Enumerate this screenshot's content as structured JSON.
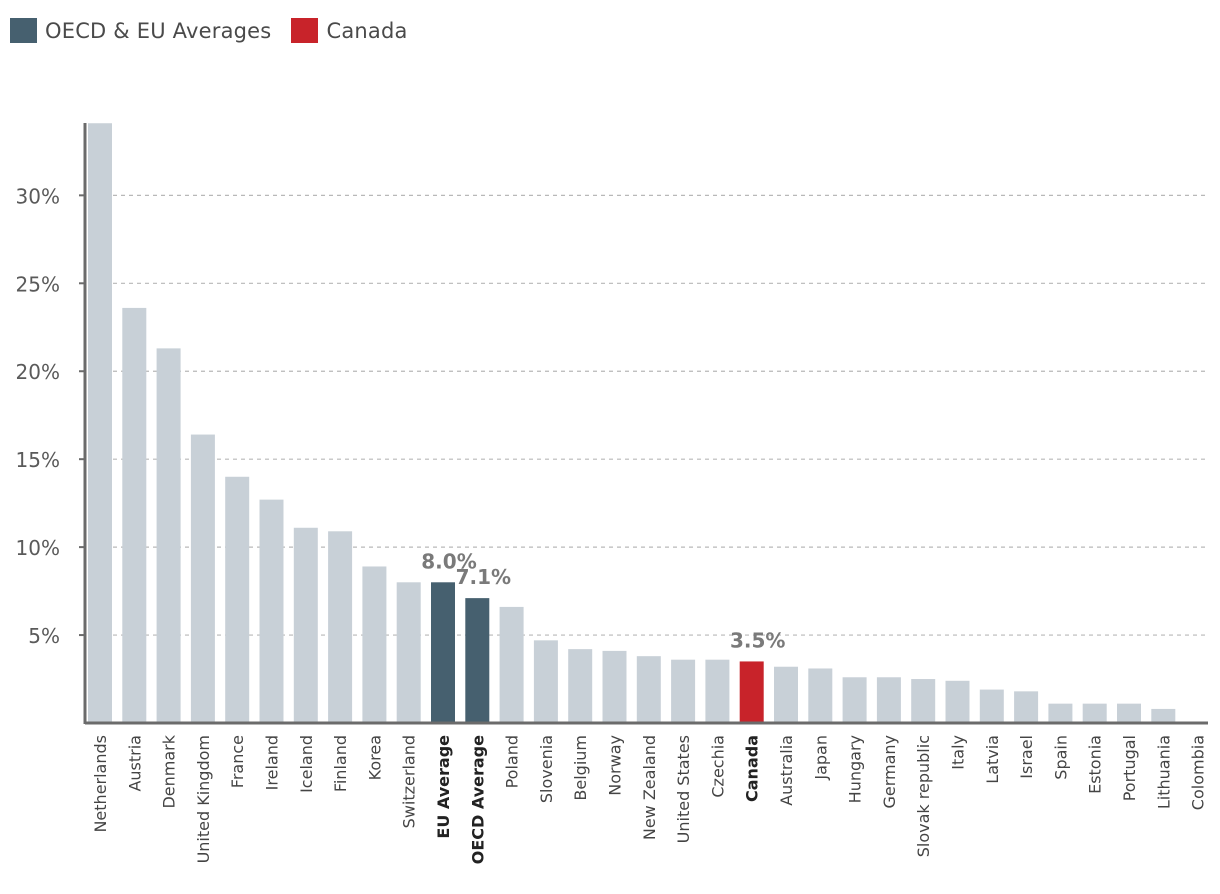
{
  "legend": [
    {
      "label": "OECD & EU Averages",
      "color": "#46606f"
    },
    {
      "label": "Canada",
      "color": "#c8232a"
    }
  ],
  "colors": {
    "default_bar": "#c8d0d7",
    "average_bar": "#46606f",
    "canada_bar": "#c8232a",
    "axis": "#6b6b6b",
    "grid": "#b8b8b8",
    "label": "#444444",
    "value_label": "#7a7a7a"
  },
  "chart_data": {
    "type": "bar",
    "title": "",
    "xlabel": "",
    "ylabel": "",
    "ylim": [
      0,
      34
    ],
    "yticks": [
      5,
      10,
      15,
      20,
      25,
      30
    ],
    "ytick_labels": [
      "5%",
      "10%",
      "15%",
      "20%",
      "25%",
      "30%"
    ],
    "grid": true,
    "legend_position": "top-left",
    "categories": [
      "Netherlands",
      "Austria",
      "Denmark",
      "United Kingdom",
      "France",
      "Ireland",
      "Iceland",
      "Finland",
      "Korea",
      "Switzerland",
      "EU Average",
      "OECD Average",
      "Poland",
      "Slovenia",
      "Belgium",
      "Norway",
      "New Zealand",
      "United States",
      "Czechia",
      "Canada",
      "Australia",
      "Japan",
      "Hungary",
      "Germany",
      "Slovak republic",
      "Italy",
      "Latvia",
      "Israel",
      "Spain",
      "Estonia",
      "Portugal",
      "Lithuania",
      "Colombia"
    ],
    "values": [
      34.1,
      23.6,
      21.3,
      16.4,
      14.0,
      12.7,
      11.1,
      10.9,
      8.9,
      8.0,
      8.0,
      7.1,
      6.6,
      4.7,
      4.2,
      4.1,
      3.8,
      3.6,
      3.6,
      3.5,
      3.2,
      3.1,
      2.6,
      2.6,
      2.5,
      2.4,
      1.9,
      1.8,
      1.1,
      1.1,
      1.1,
      0.8,
      0.0
    ],
    "highlight": {
      "EU Average": "average",
      "OECD Average": "average",
      "Canada": "canada"
    },
    "bold_categories": [
      "EU Average",
      "OECD Average",
      "Canada"
    ],
    "annotations": [
      {
        "category": "EU Average",
        "text": "8.0%"
      },
      {
        "category": "OECD Average",
        "text": "7.1%"
      },
      {
        "category": "Canada",
        "text": "3.5%"
      }
    ]
  }
}
